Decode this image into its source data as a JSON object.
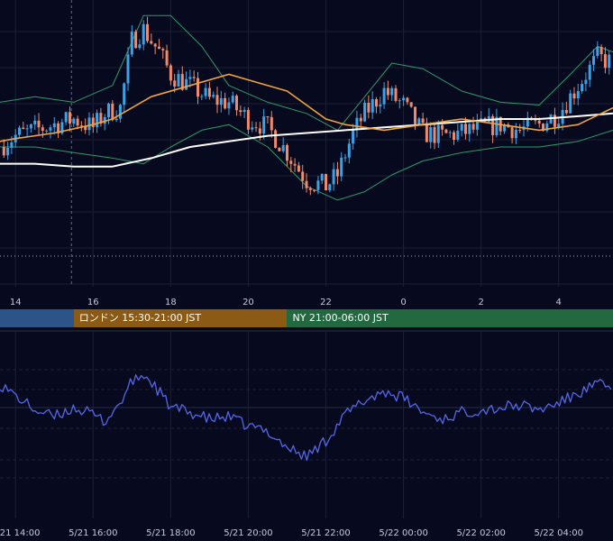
{
  "theme": {
    "background": "#070a1f",
    "grid": "#1c2035",
    "candle_up": "#3aa3e8",
    "candle_down": "#f08a6a",
    "ma_short": "#f0a43a",
    "ma_long": "#ffffff",
    "bollinger": "#2f9a68",
    "oscillator": "#5468e8"
  },
  "sessions": [
    {
      "label": "",
      "color": "#2c5487",
      "start_hour": 12.0,
      "end_hour": 15.5
    },
    {
      "label": "ロンドン 15:30-21:00 JST",
      "color": "#8b5a14",
      "start_hour": 15.5,
      "end_hour": 21.0
    },
    {
      "label": "NY 21:00-06:00 JST",
      "color": "#23693f",
      "start_hour": 21.0,
      "end_hour": 30.0
    }
  ],
  "chart_data": [
    {
      "type": "candlestick",
      "indicators": [
        "short moving average",
        "long moving average",
        "bollinger bands"
      ],
      "x_axis": {
        "ticks": [
          "14",
          "16",
          "18",
          "20",
          "22",
          "0",
          "2",
          "4"
        ],
        "tick_hours": [
          14,
          16,
          18,
          20,
          22,
          24,
          26,
          28
        ]
      },
      "x_range_hours": [
        13.6,
        29.4
      ],
      "y_range": [
        0,
        100
      ],
      "grid": true,
      "close_path": [
        [
          13.6,
          50
        ],
        [
          14.0,
          54
        ],
        [
          14.5,
          56
        ],
        [
          15.0,
          58
        ],
        [
          15.5,
          60
        ],
        [
          16.0,
          57
        ],
        [
          16.3,
          62
        ],
        [
          16.7,
          64
        ],
        [
          17.0,
          88
        ],
        [
          17.3,
          92
        ],
        [
          17.7,
          84
        ],
        [
          18.0,
          76
        ],
        [
          18.5,
          72
        ],
        [
          19.0,
          67
        ],
        [
          19.5,
          66
        ],
        [
          20.0,
          60
        ],
        [
          20.5,
          57
        ],
        [
          21.0,
          48
        ],
        [
          21.5,
          38
        ],
        [
          22.0,
          36
        ],
        [
          22.3,
          40
        ],
        [
          22.7,
          55
        ],
        [
          23.0,
          62
        ],
        [
          23.5,
          70
        ],
        [
          24.0,
          65
        ],
        [
          24.5,
          55
        ],
        [
          25.0,
          54
        ],
        [
          25.5,
          55
        ],
        [
          26.0,
          57
        ],
        [
          26.5,
          58
        ],
        [
          27.0,
          56
        ],
        [
          27.5,
          58
        ],
        [
          28.0,
          62
        ],
        [
          28.5,
          72
        ],
        [
          29.0,
          82
        ],
        [
          29.4,
          80
        ]
      ],
      "ma_short": [
        [
          13.6,
          52
        ],
        [
          14.0,
          53
        ],
        [
          15.0,
          55
        ],
        [
          16.0,
          58
        ],
        [
          16.5,
          60
        ],
        [
          17.5,
          68
        ],
        [
          18.5,
          72
        ],
        [
          19.5,
          76
        ],
        [
          20.0,
          74
        ],
        [
          21.0,
          70
        ],
        [
          22.0,
          60
        ],
        [
          22.5,
          58
        ],
        [
          23.5,
          56
        ],
        [
          24.5,
          58
        ],
        [
          25.5,
          60
        ],
        [
          26.5,
          58
        ],
        [
          27.5,
          56
        ],
        [
          28.5,
          58
        ],
        [
          29.4,
          64
        ]
      ],
      "ma_long": [
        [
          13.6,
          44
        ],
        [
          14.5,
          44
        ],
        [
          15.5,
          43
        ],
        [
          16.5,
          43
        ],
        [
          17.5,
          46
        ],
        [
          18.5,
          50
        ],
        [
          19.5,
          52
        ],
        [
          20.5,
          54
        ],
        [
          21.5,
          55
        ],
        [
          22.5,
          56
        ],
        [
          23.5,
          57
        ],
        [
          24.5,
          58
        ],
        [
          25.5,
          59
        ],
        [
          26.5,
          60
        ],
        [
          27.5,
          60
        ],
        [
          28.5,
          61
        ],
        [
          29.4,
          62
        ]
      ],
      "bollinger_upper": [
        [
          13.6,
          66
        ],
        [
          14.5,
          68
        ],
        [
          15.5,
          66
        ],
        [
          16.5,
          72
        ],
        [
          17.3,
          97
        ],
        [
          18.0,
          97
        ],
        [
          18.8,
          86
        ],
        [
          19.5,
          72
        ],
        [
          20.5,
          66
        ],
        [
          21.5,
          62
        ],
        [
          22.3,
          56
        ],
        [
          23.0,
          68
        ],
        [
          23.7,
          80
        ],
        [
          24.5,
          78
        ],
        [
          25.5,
          70
        ],
        [
          26.5,
          66
        ],
        [
          27.5,
          65
        ],
        [
          28.3,
          76
        ],
        [
          29.0,
          86
        ],
        [
          29.4,
          84
        ]
      ],
      "bollinger_lower": [
        [
          13.6,
          50
        ],
        [
          14.5,
          50
        ],
        [
          15.5,
          48
        ],
        [
          16.5,
          46
        ],
        [
          17.3,
          44
        ],
        [
          18.0,
          50
        ],
        [
          18.8,
          56
        ],
        [
          19.5,
          58
        ],
        [
          20.5,
          50
        ],
        [
          21.5,
          36
        ],
        [
          22.3,
          31
        ],
        [
          23.0,
          34
        ],
        [
          23.7,
          40
        ],
        [
          24.5,
          45
        ],
        [
          25.5,
          48
        ],
        [
          26.5,
          50
        ],
        [
          27.5,
          50
        ],
        [
          28.5,
          52
        ],
        [
          29.4,
          56
        ]
      ]
    },
    {
      "type": "line",
      "x_axis": {
        "ticks": [
          "5/21 14:00",
          "5/21 16:00",
          "5/21 18:00",
          "5/21 20:00",
          "5/21 22:00",
          "5/22 00:00",
          "5/22 02:00",
          "5/22 04:00"
        ],
        "tick_hours": [
          14,
          16,
          18,
          20,
          22,
          24,
          26,
          28
        ]
      },
      "x_range_hours": [
        13.6,
        29.4
      ],
      "y_range": [
        0,
        100
      ],
      "grid": true,
      "path": [
        [
          13.6,
          80
        ],
        [
          14.0,
          70
        ],
        [
          14.5,
          58
        ],
        [
          15.0,
          52
        ],
        [
          15.5,
          60
        ],
        [
          16.0,
          54
        ],
        [
          16.3,
          48
        ],
        [
          16.7,
          64
        ],
        [
          17.0,
          82
        ],
        [
          17.3,
          88
        ],
        [
          17.6,
          78
        ],
        [
          18.0,
          60
        ],
        [
          18.5,
          56
        ],
        [
          19.0,
          50
        ],
        [
          19.5,
          52
        ],
        [
          20.0,
          44
        ],
        [
          20.5,
          40
        ],
        [
          21.0,
          26
        ],
        [
          21.5,
          18
        ],
        [
          22.0,
          32
        ],
        [
          22.5,
          54
        ],
        [
          23.0,
          66
        ],
        [
          23.5,
          74
        ],
        [
          24.0,
          68
        ],
        [
          24.5,
          56
        ],
        [
          25.0,
          50
        ],
        [
          25.5,
          56
        ],
        [
          26.0,
          58
        ],
        [
          26.5,
          60
        ],
        [
          27.0,
          62
        ],
        [
          27.5,
          58
        ],
        [
          28.0,
          64
        ],
        [
          28.5,
          72
        ],
        [
          29.0,
          80
        ],
        [
          29.4,
          76
        ]
      ]
    }
  ]
}
